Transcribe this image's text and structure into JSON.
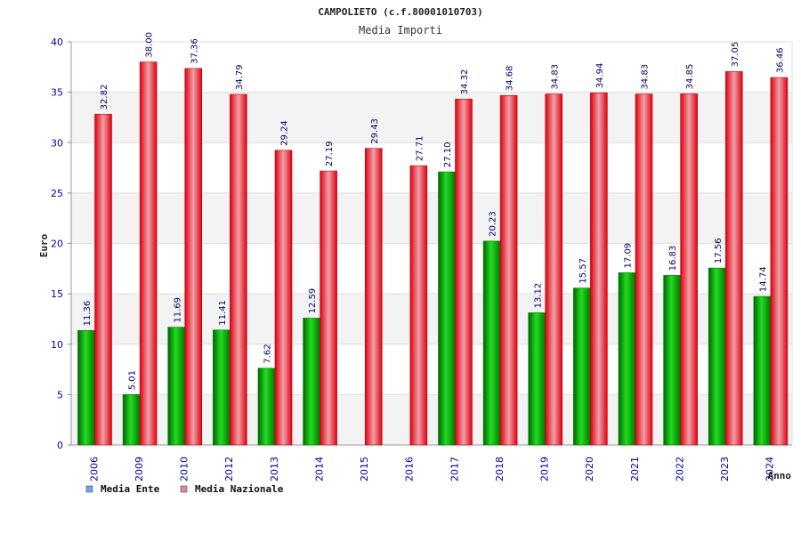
{
  "chart_data": {
    "type": "bar",
    "title": "CAMPOLIETO (c.f.80001010703)",
    "subtitle": "Media Importi",
    "xlabel": "Anno",
    "ylabel": "Euro",
    "ylim": [
      0,
      40
    ],
    "yticks": [
      0,
      5,
      10,
      15,
      20,
      25,
      30,
      35,
      40
    ],
    "categories": [
      "2006",
      "2009",
      "2010",
      "2012",
      "2013",
      "2014",
      "2015",
      "2016",
      "2017",
      "2018",
      "2019",
      "2020",
      "2021",
      "2022",
      "2023",
      "2024"
    ],
    "series": [
      {
        "name": "Media Ente",
        "color": "#00aa00",
        "legend_color": "#66aaee",
        "values": [
          11.36,
          5.01,
          11.69,
          11.41,
          7.62,
          12.59,
          null,
          null,
          27.1,
          20.23,
          13.12,
          15.57,
          17.09,
          16.83,
          17.56,
          14.74
        ],
        "labels": [
          "11.36",
          "5.01",
          "11.69",
          "11.41",
          "7.62",
          "12.59",
          "",
          "",
          "27.10",
          "20.23",
          "13.12",
          "15.57",
          "17.09",
          "16.83",
          "17.56",
          "14.74"
        ]
      },
      {
        "name": "Media Nazionale",
        "color": "#ee0000",
        "legend_color": "#dd88aa",
        "values": [
          32.82,
          38.0,
          37.36,
          34.79,
          29.24,
          27.19,
          29.43,
          27.71,
          34.32,
          34.68,
          34.83,
          34.94,
          34.83,
          34.85,
          37.05,
          36.46
        ],
        "labels": [
          "32.82",
          "38.00",
          "37.36",
          "34.79",
          "29.24",
          "27.19",
          "29.43",
          "27.71",
          "34.32",
          "34.68",
          "34.83",
          "34.94",
          "34.83",
          "34.85",
          "37.05",
          "36.46"
        ]
      }
    ],
    "grid": true,
    "legend_position": "bottom-left"
  }
}
